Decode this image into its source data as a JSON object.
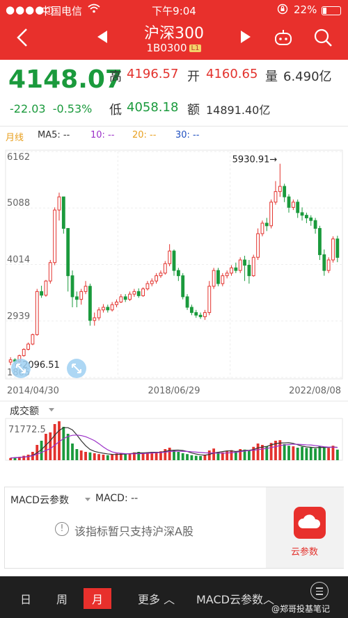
{
  "status_bar": {
    "signal": "●●●●○",
    "carrier": "中国电信",
    "time": "下午9:04",
    "battery": "22%"
  },
  "header": {
    "title": "沪深300",
    "code": "1B0300",
    "badge": "L1"
  },
  "quote": {
    "price": "4148.07",
    "change": "-22.03",
    "change_pct": "-0.53%",
    "high_label": "高",
    "high": "4196.57",
    "open_label": "开",
    "open": "4160.65",
    "volume_label": "量",
    "volume": "6.490亿",
    "low_label": "低",
    "low": "4058.18",
    "amount_label": "额",
    "amount": "14891.40亿"
  },
  "legend": {
    "period": "月线",
    "ma5": "MA5: --",
    "ma10": "10: --",
    "ma20": "20: --",
    "ma30": "30: --"
  },
  "colors": {
    "up": "#e3322d",
    "down": "#1a9a3c",
    "ma5": "#333333",
    "ma10": "#9b30c8",
    "ma20": "#e8a020",
    "ma30": "#2050c0",
    "accent": "#e8302c"
  },
  "chart_data": [
    {
      "type": "candlestick",
      "period": "monthly",
      "y_ticks": [
        "6162",
        "5088",
        "4014",
        "2939",
        "1865"
      ],
      "ylim": [
        1865,
        6162
      ],
      "x_tick_labels": [
        "2014/04/30",
        "2018/06/29",
        "2022/08/08"
      ],
      "annotations": {
        "max": "5930.91→",
        "min": "←2096.51"
      },
      "candles": [
        [
          2157,
          2200,
          2250,
          2100
        ],
        [
          2200,
          2170,
          2230,
          2130
        ],
        [
          2170,
          2280,
          2300,
          2150
        ],
        [
          2280,
          2400,
          2420,
          2260
        ],
        [
          2400,
          2500,
          2530,
          2380
        ],
        [
          2500,
          2680,
          2700,
          2480
        ],
        [
          2680,
          3500,
          3550,
          2660
        ],
        [
          3500,
          3430,
          3610,
          3380
        ],
        [
          3430,
          3700,
          3720,
          3400
        ],
        [
          3700,
          4050,
          4100,
          3650
        ],
        [
          4050,
          5050,
          5100,
          4000
        ],
        [
          5050,
          5300,
          5380,
          4850
        ],
        [
          5300,
          4700,
          5100,
          4600
        ],
        [
          4700,
          3800,
          4650,
          3500
        ],
        [
          3800,
          3400,
          3900,
          3200
        ],
        [
          3400,
          3350,
          3500,
          3200
        ],
        [
          3350,
          3500,
          3550,
          3250
        ],
        [
          3500,
          3600,
          3700,
          3450
        ],
        [
          3600,
          2950,
          3650,
          2850
        ],
        [
          2950,
          3000,
          3100,
          2850
        ],
        [
          3000,
          3150,
          3200,
          2950
        ],
        [
          3150,
          3200,
          3260,
          3100
        ],
        [
          3200,
          3150,
          3250,
          3100
        ],
        [
          3150,
          3250,
          3300,
          3120
        ],
        [
          3250,
          3300,
          3350,
          3200
        ],
        [
          3300,
          3400,
          3450,
          3280
        ],
        [
          3400,
          3350,
          3450,
          3300
        ],
        [
          3350,
          3450,
          3500,
          3320
        ],
        [
          3450,
          3500,
          3550,
          3400
        ],
        [
          3500,
          3420,
          3560,
          3380
        ],
        [
          3420,
          3550,
          3580,
          3400
        ],
        [
          3550,
          3650,
          3700,
          3520
        ],
        [
          3650,
          3700,
          3750,
          3600
        ],
        [
          3700,
          3800,
          3850,
          3650
        ],
        [
          3800,
          3850,
          3900,
          3760
        ],
        [
          3850,
          4030,
          4080,
          3820
        ],
        [
          4030,
          4270,
          4400,
          3980
        ],
        [
          4270,
          3900,
          4300,
          3800
        ],
        [
          3900,
          3800,
          3950,
          3700
        ],
        [
          3800,
          3400,
          3850,
          3350
        ],
        [
          3400,
          3200,
          3450,
          3150
        ],
        [
          3200,
          3100,
          3250,
          3050
        ],
        [
          3100,
          3050,
          3150,
          3000
        ],
        [
          3050,
          3020,
          3100,
          2980
        ],
        [
          3020,
          3100,
          3150,
          2960
        ],
        [
          3100,
          3600,
          3700,
          3050
        ],
        [
          3600,
          3900,
          3950,
          3550
        ],
        [
          3900,
          3650,
          3950,
          3600
        ],
        [
          3650,
          3800,
          3850,
          3600
        ],
        [
          3800,
          3850,
          3900,
          3750
        ],
        [
          3850,
          3950,
          4000,
          3800
        ],
        [
          3950,
          3900,
          4050,
          3850
        ],
        [
          3900,
          4100,
          4150,
          3850
        ],
        [
          4100,
          4000,
          4180,
          3700
        ],
        [
          4000,
          3800,
          4100,
          3650
        ],
        [
          3800,
          4150,
          4200,
          3780
        ],
        [
          4150,
          4600,
          4700,
          4100
        ],
        [
          4600,
          4800,
          4850,
          4550
        ],
        [
          4800,
          4750,
          4900,
          4650
        ],
        [
          4750,
          5200,
          5250,
          4700
        ],
        [
          5200,
          5400,
          5600,
          5150
        ],
        [
          5400,
          5500,
          5930,
          5300
        ],
        [
          5500,
          5300,
          5550,
          5200
        ],
        [
          5300,
          5100,
          5350,
          5000
        ],
        [
          5100,
          5200,
          5250,
          5050
        ],
        [
          5200,
          5000,
          5250,
          4900
        ],
        [
          5000,
          4950,
          5100,
          4850
        ],
        [
          4950,
          4900,
          5000,
          4800
        ],
        [
          4900,
          4850,
          4950,
          4750
        ],
        [
          4850,
          4700,
          4900,
          4600
        ],
        [
          4700,
          4200,
          4750,
          4100
        ],
        [
          4200,
          3900,
          4300,
          3800
        ],
        [
          3900,
          4100,
          4150,
          3850
        ],
        [
          4100,
          4500,
          4550,
          4050
        ],
        [
          4500,
          4148,
          4560,
          4058
        ]
      ]
    },
    {
      "type": "bar",
      "title": "成交额",
      "y_tick_labels": [
        "71772.5"
      ],
      "note": "monthly turnover bars with moving-average overlay",
      "values": [
        8,
        10,
        12,
        16,
        20,
        30,
        55,
        70,
        95,
        100,
        130,
        140,
        120,
        95,
        60,
        40,
        35,
        30,
        28,
        25,
        22,
        20,
        18,
        20,
        24,
        26,
        22,
        25,
        28,
        30,
        26,
        28,
        30,
        28,
        32,
        40,
        45,
        35,
        30,
        25,
        22,
        18,
        16,
        15,
        20,
        35,
        42,
        30,
        28,
        32,
        36,
        30,
        40,
        38,
        35,
        48,
        60,
        55,
        50,
        62,
        70,
        72,
        58,
        52,
        50,
        45,
        48,
        44,
        46,
        42,
        50,
        48,
        44,
        52,
        38
      ],
      "ylim": [
        0,
        150
      ]
    }
  ],
  "volume": {
    "tab": "成交额",
    "scale_label": "71772.5"
  },
  "macd": {
    "tab": "MACD云参数",
    "label": "MACD: --",
    "message": "该指标暂只支持沪深A股",
    "cloud_label": "云参数"
  },
  "bottom_bar": {
    "day": "日",
    "week": "周",
    "month": "月",
    "more": "更多",
    "macd": "MACD云参数",
    "watermark": "@郑哥投基笔记"
  }
}
